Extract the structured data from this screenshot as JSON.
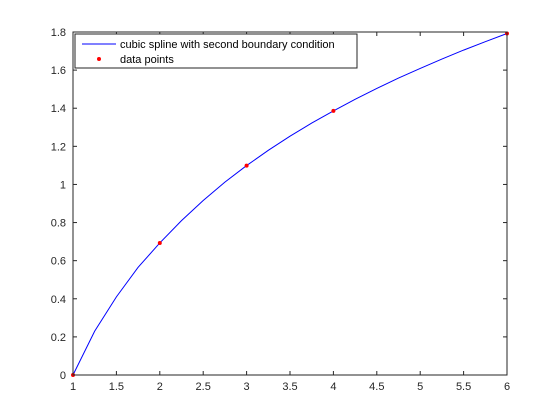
{
  "chart_data": {
    "type": "line",
    "title": "",
    "xlabel": "",
    "ylabel": "",
    "xlim": [
      1,
      6
    ],
    "ylim": [
      0,
      1.8
    ],
    "x_ticks": [
      1,
      1.5,
      2,
      2.5,
      3,
      3.5,
      4,
      4.5,
      5,
      5.5,
      6
    ],
    "y_ticks": [
      0,
      0.2,
      0.4,
      0.6,
      0.8,
      1,
      1.2,
      1.4,
      1.6,
      1.8
    ],
    "x_tick_labels": [
      "1",
      "1.5",
      "2",
      "2.5",
      "3",
      "3.5",
      "4",
      "4.5",
      "5",
      "5.5",
      "6"
    ],
    "y_tick_labels": [
      "0",
      "0.2",
      "0.4",
      "0.6",
      "0.8",
      "1",
      "1.2",
      "1.4",
      "1.6",
      "1.8"
    ],
    "grid": false,
    "legend_position": "top-left",
    "series": [
      {
        "name": "cubic spline with second boundary condition",
        "style": "line",
        "color": "#0000ff",
        "x": [
          1,
          1.25,
          1.5,
          1.75,
          2,
          2.25,
          2.5,
          2.75,
          3,
          3.25,
          3.5,
          3.75,
          4,
          4.25,
          4.5,
          4.75,
          5,
          5.25,
          5.5,
          5.75,
          6
        ],
        "y": [
          0,
          0.23,
          0.41,
          0.565,
          0.693,
          0.81,
          0.916,
          1.012,
          1.099,
          1.179,
          1.253,
          1.322,
          1.386,
          1.447,
          1.504,
          1.558,
          1.609,
          1.658,
          1.705,
          1.749,
          1.792
        ]
      },
      {
        "name": "data points",
        "style": "marker",
        "color": "#ff0000",
        "x": [
          1,
          2,
          3,
          4,
          6
        ],
        "y": [
          0,
          0.693,
          1.099,
          1.386,
          1.792
        ]
      }
    ]
  }
}
